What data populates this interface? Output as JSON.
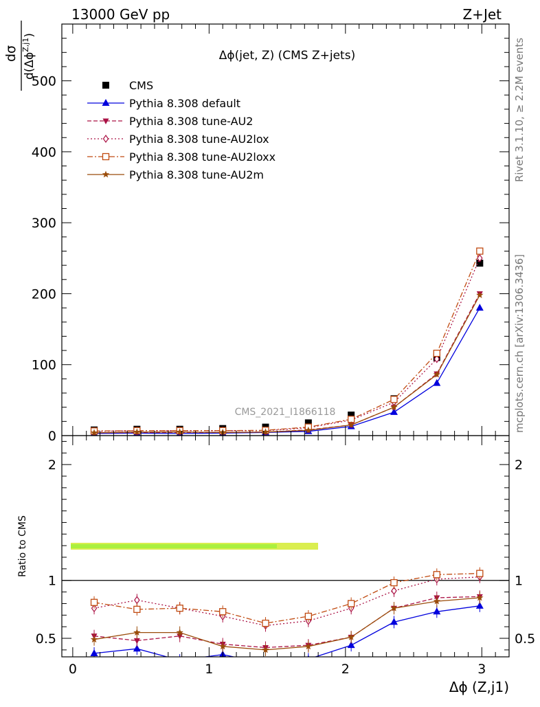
{
  "header": {
    "left": "13000 GeV pp",
    "right": "Z+Jet"
  },
  "side_labels": {
    "rivet": "Rivet 3.1.10, ≥ 2.2M events",
    "mcplots": "mcplots.cern.ch [arXiv:1306.3436]"
  },
  "chart_data": [
    {
      "type": "line",
      "title": "Δϕ(jet, Z) (CMS Z+jets)",
      "watermark": "CMS_2021_I1866118",
      "ylabel": "dσ / d(Δϕ^{Z,j1})",
      "xlim": [
        -0.08,
        3.2
      ],
      "ylim": [
        0,
        580
      ],
      "yticks": [
        0,
        100,
        200,
        300,
        400,
        500
      ],
      "x": [
        0.157,
        0.471,
        0.785,
        1.1,
        1.414,
        1.728,
        2.042,
        2.356,
        2.67,
        2.985
      ],
      "series": [
        {
          "name": "CMS",
          "values": [
            8,
            9,
            9,
            10,
            12,
            18,
            29,
            52,
            110,
            243
          ],
          "color": "#000000",
          "marker": "square-filled",
          "dash": "none"
        },
        {
          "name": "Pythia 8.308 default",
          "values": [
            3,
            3.5,
            3,
            3.5,
            4.5,
            6,
            13,
            33,
            74,
            180
          ],
          "color": "#0000dd",
          "marker": "triangle-up-filled",
          "dash": "solid"
        },
        {
          "name": "Pythia 8.308 tune-AU2",
          "values": [
            4,
            4.5,
            4.5,
            4.5,
            5,
            8,
            15,
            40,
            87,
            200
          ],
          "color": "#aa1144",
          "marker": "triangle-down-filled",
          "dash": "dashed"
        },
        {
          "name": "Pythia 8.308 tune-AU2lox",
          "values": [
            6,
            7,
            7,
            7,
            7,
            11,
            22,
            47,
            108,
            250
          ],
          "color": "#aa1144",
          "marker": "diamond-open",
          "dash": "dotted"
        },
        {
          "name": "Pythia 8.308 tune-AU2loxx",
          "values": [
            6.5,
            7,
            7,
            7,
            7.5,
            12,
            23,
            51,
            116,
            260
          ],
          "color": "#c04a10",
          "marker": "square-open",
          "dash": "dashdot"
        },
        {
          "name": "Pythia 8.308 tune-AU2m",
          "values": [
            4,
            5,
            5,
            4.5,
            5,
            7.5,
            15,
            40,
            86,
            198
          ],
          "color": "#9a4c0a",
          "marker": "star",
          "dash": "solid"
        }
      ]
    },
    {
      "type": "line",
      "xlabel": "Δϕ (Z,j1)",
      "ylabel": "Ratio to CMS",
      "xlim": [
        -0.08,
        3.2
      ],
      "ylim": [
        0.34,
        2.25
      ],
      "yticks": [
        0.5,
        1,
        2
      ],
      "xticks": [
        0,
        1,
        2,
        3
      ],
      "reference_line": 1,
      "x": [
        0.157,
        0.471,
        0.785,
        1.1,
        1.414,
        1.728,
        2.042,
        2.356,
        2.67,
        2.985
      ],
      "series": [
        {
          "name": "Pythia 8.308 default",
          "values": [
            0.37,
            0.41,
            0.31,
            0.36,
            0.28,
            0.32,
            0.44,
            0.64,
            0.73,
            0.78
          ]
        },
        {
          "name": "Pythia 8.308 tune-AU2",
          "values": [
            0.52,
            0.48,
            0.52,
            0.45,
            0.42,
            0.44,
            0.51,
            0.76,
            0.85,
            0.86
          ]
        },
        {
          "name": "Pythia 8.308 tune-AU2lox",
          "values": [
            0.76,
            0.83,
            0.76,
            0.69,
            0.61,
            0.65,
            0.76,
            0.91,
            1.01,
            1.03
          ]
        },
        {
          "name": "Pythia 8.308 tune-AU2loxx",
          "values": [
            0.81,
            0.75,
            0.76,
            0.73,
            0.63,
            0.69,
            0.8,
            0.98,
            1.05,
            1.06
          ]
        },
        {
          "name": "Pythia 8.308 tune-AU2m",
          "values": [
            0.49,
            0.55,
            0.55,
            0.43,
            0.4,
            0.43,
            0.51,
            0.76,
            0.82,
            0.85
          ]
        }
      ]
    }
  ]
}
